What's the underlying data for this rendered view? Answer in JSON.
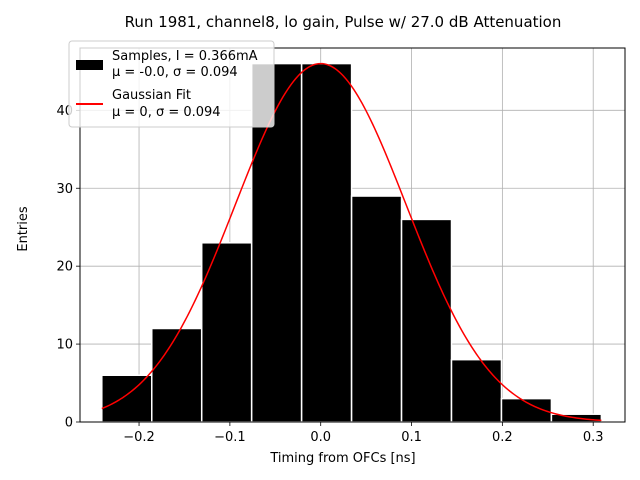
{
  "chart_data": {
    "type": "bar",
    "title": "Run 1981, channel8, lo gain, Pulse w/ 27.0 dB Attenuation",
    "xlabel": "Timing from OFCs [ns]",
    "ylabel": "Entries",
    "xlim": [
      -0.265,
      0.335
    ],
    "ylim": [
      0,
      48
    ],
    "xticks": [
      -0.2,
      -0.1,
      0.0,
      0.1,
      0.2,
      0.3
    ],
    "xtick_labels": [
      "−0.2",
      "−0.1",
      "0.0",
      "0.1",
      "0.2",
      "0.3"
    ],
    "yticks": [
      0,
      10,
      20,
      30,
      40
    ],
    "ytick_labels": [
      "0",
      "10",
      "20",
      "30",
      "40"
    ],
    "grid": true,
    "bin_edges": [
      -0.241,
      -0.186,
      -0.131,
      -0.076,
      -0.021,
      0.034,
      0.089,
      0.144,
      0.199,
      0.254,
      0.309
    ],
    "values": [
      6,
      12,
      23,
      46,
      46,
      29,
      26,
      8,
      3,
      1
    ],
    "bar_color": "#000000",
    "bar_edge_color": "#ffffff",
    "fit": {
      "name": "Gaussian Fit",
      "amplitude": 46,
      "mu": 0,
      "sigma": 0.094,
      "x_range": [
        -0.241,
        0.309
      ],
      "color": "#ff0000"
    },
    "legend": {
      "position": "top-left",
      "entries": [
        {
          "type": "bar",
          "color": "#000000",
          "line1": "Samples, I = 0.366mA",
          "line2": "μ = -0.0, σ = 0.094"
        },
        {
          "type": "line",
          "color": "#ff0000",
          "line1": "Gaussian Fit",
          "line2": "μ = 0, σ = 0.094"
        }
      ]
    }
  }
}
